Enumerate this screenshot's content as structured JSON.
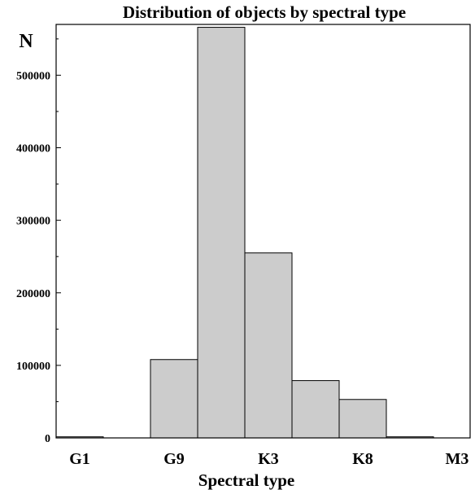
{
  "chart_data": {
    "type": "bar",
    "title": "Distribution of objects by spectral type",
    "xlabel": "Spectral type",
    "ylabel": "N",
    "x_tick_labels": [
      "G1",
      "G9",
      "K3",
      "K8",
      "M3"
    ],
    "ylim": [
      0,
      570000
    ],
    "y_ticks": [
      0,
      100000,
      200000,
      300000,
      400000,
      500000
    ],
    "bins": [
      {
        "index": 0,
        "value": 1500
      },
      {
        "index": 1,
        "value": 0
      },
      {
        "index": 2,
        "value": 108000
      },
      {
        "index": 3,
        "value": 566000
      },
      {
        "index": 4,
        "value": 255000
      },
      {
        "index": 5,
        "value": 79000
      },
      {
        "index": 6,
        "value": 53000
      },
      {
        "index": 7,
        "value": 1500
      }
    ],
    "grid": false
  }
}
